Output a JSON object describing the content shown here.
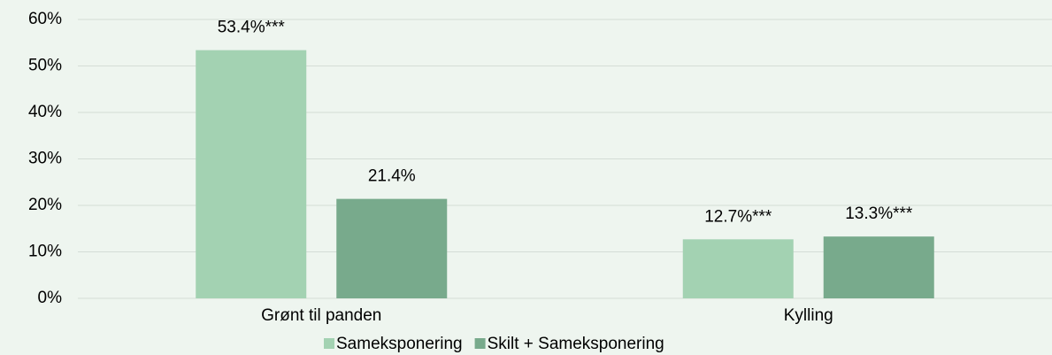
{
  "chart_data": {
    "type": "bar",
    "categories": [
      "Grønt til panden",
      "Kylling"
    ],
    "series": [
      {
        "name": "Sameksponering",
        "color": "#a3d2b2",
        "values": [
          53.4,
          12.7
        ],
        "value_labels": [
          "53.4%***",
          "12.7%***"
        ]
      },
      {
        "name": "Skilt + Sameksponering",
        "color": "#78aa8c",
        "values": [
          21.4,
          13.3
        ],
        "value_labels": [
          "21.4%",
          "13.3%***"
        ]
      }
    ],
    "ylim": [
      0,
      60
    ],
    "yticks": [
      {
        "value": 0,
        "label": "0%"
      },
      {
        "value": 10,
        "label": "10%"
      },
      {
        "value": 20,
        "label": "20%"
      },
      {
        "value": 30,
        "label": "30%"
      },
      {
        "value": 40,
        "label": "40%"
      },
      {
        "value": 50,
        "label": "50%"
      },
      {
        "value": 60,
        "label": "60%"
      }
    ],
    "grid": true,
    "legend": "bottom"
  }
}
